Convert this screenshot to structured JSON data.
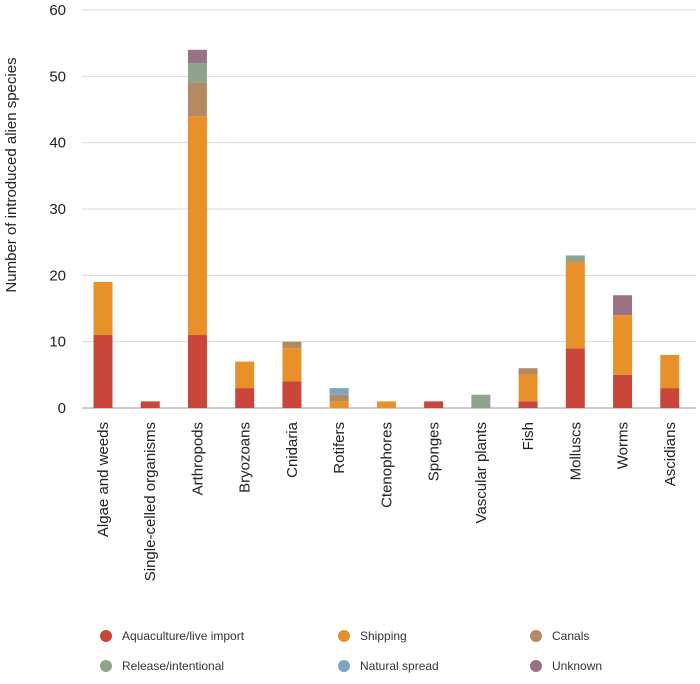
{
  "chart_data": {
    "type": "bar",
    "stacked": true,
    "title": "",
    "xlabel": "",
    "ylabel": "Number of introduced alien species",
    "ylim": [
      0,
      60
    ],
    "yticks": [
      0,
      10,
      20,
      30,
      40,
      50,
      60
    ],
    "grid": "horizontal",
    "legend_position": "bottom",
    "categories": [
      "Algae and weeds",
      "Single-celled organisms",
      "Arthropods",
      "Bryozoans",
      "Cnidaria",
      "Rotifers",
      "Ctenophores",
      "Sponges",
      "Vascular plants",
      "Fish",
      "Molluscs",
      "Worms",
      "Ascidians"
    ],
    "series": [
      {
        "name": "Aquaculture/live import",
        "color": "#c8473a",
        "values": [
          11,
          1,
          11,
          3,
          4,
          0,
          0,
          1,
          0,
          1,
          9,
          5,
          3
        ]
      },
      {
        "name": "Shipping",
        "color": "#e8912b",
        "values": [
          8,
          0,
          33,
          4,
          5,
          1,
          1,
          0,
          0,
          4,
          13,
          9,
          5
        ]
      },
      {
        "name": "Canals",
        "color": "#b48a63",
        "values": [
          0,
          0,
          5,
          0,
          1,
          1,
          0,
          0,
          0,
          1,
          0,
          0,
          0
        ]
      },
      {
        "name": "Release/intentional",
        "color": "#8ea58b",
        "values": [
          0,
          0,
          3,
          0,
          0,
          0,
          0,
          0,
          2,
          0,
          1,
          0,
          0
        ]
      },
      {
        "name": "Natural spread",
        "color": "#7da4c2",
        "values": [
          0,
          0,
          0,
          0,
          0,
          1,
          0,
          0,
          0,
          0,
          0,
          0,
          0
        ]
      },
      {
        "name": "Unknown",
        "color": "#9a7286",
        "values": [
          0,
          0,
          2,
          0,
          0,
          0,
          0,
          0,
          0,
          0,
          0,
          3,
          0
        ]
      }
    ]
  }
}
